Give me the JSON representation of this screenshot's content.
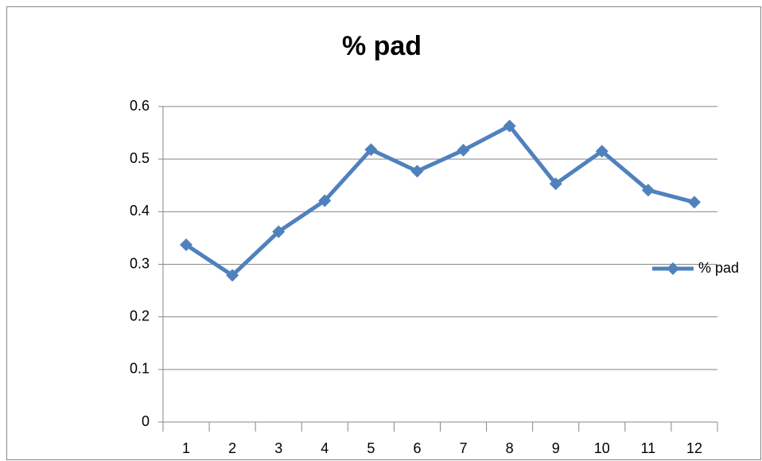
{
  "chart_data": {
    "type": "line",
    "title": "% pad",
    "categories": [
      "1",
      "2",
      "3",
      "4",
      "5",
      "6",
      "7",
      "8",
      "9",
      "10",
      "11",
      "12"
    ],
    "series": [
      {
        "name": "% pad",
        "color": "#4f81bd",
        "values": [
          0.337,
          0.279,
          0.362,
          0.421,
          0.518,
          0.477,
          0.517,
          0.563,
          0.453,
          0.515,
          0.441,
          0.418
        ]
      }
    ],
    "ylim": [
      0,
      0.6
    ],
    "yticks": [
      0,
      0.1,
      0.2,
      0.3,
      0.4,
      0.5,
      0.6
    ],
    "grid": true,
    "legend": "right"
  }
}
